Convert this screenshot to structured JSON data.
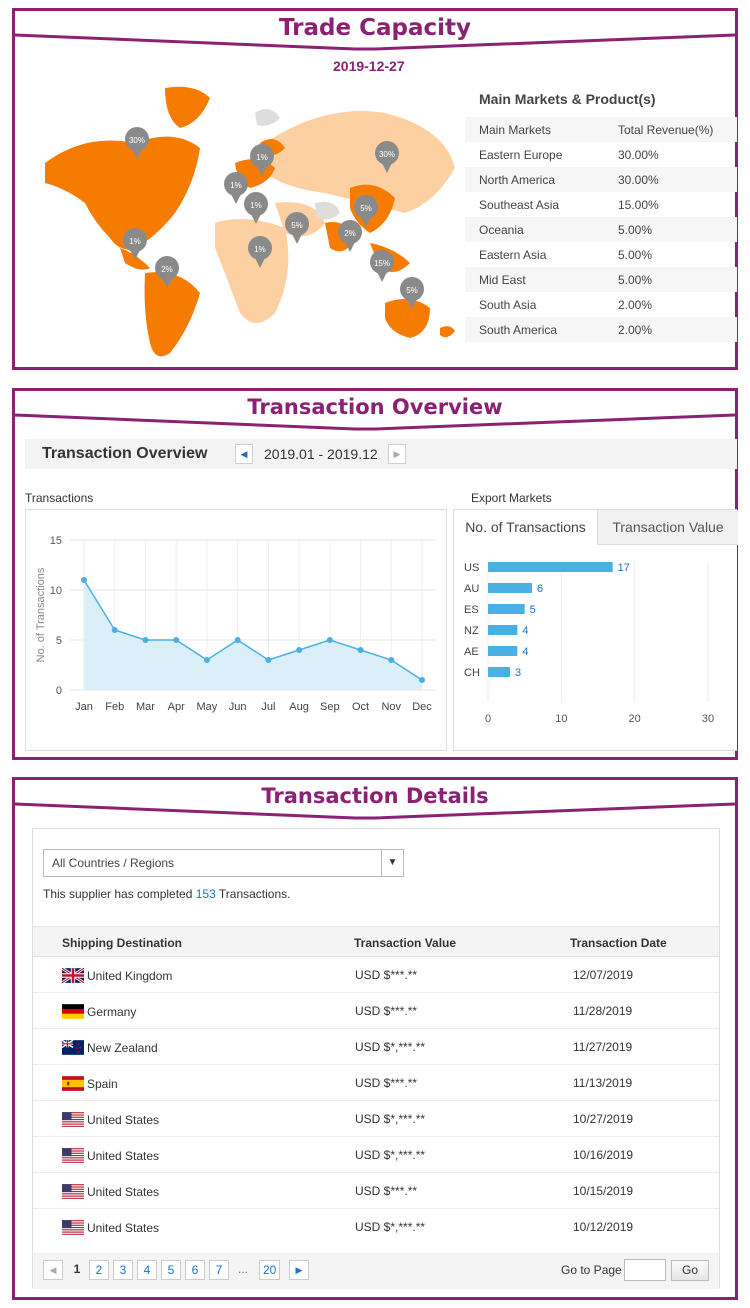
{
  "trade_capacity": {
    "banner_title": "Trade Capacity",
    "date": "2019-12-27",
    "map_pins": [
      "30%",
      "1%",
      "1%",
      "1%",
      "30%",
      "5%",
      "5%",
      "2%",
      "1%",
      "1%",
      "2%",
      "15%",
      "5%"
    ],
    "main_markets_title": "Main Markets & Product(s)",
    "table_headers": [
      "Main Markets",
      "Total Revenue(%)"
    ],
    "markets": [
      {
        "name": "Eastern Europe",
        "revenue": "30.00%"
      },
      {
        "name": "North America",
        "revenue": "30.00%"
      },
      {
        "name": "Southeast Asia",
        "revenue": "15.00%"
      },
      {
        "name": "Oceania",
        "revenue": "5.00%"
      },
      {
        "name": "Eastern Asia",
        "revenue": "5.00%"
      },
      {
        "name": "Mid East",
        "revenue": "5.00%"
      },
      {
        "name": "South Asia",
        "revenue": "2.00%"
      },
      {
        "name": "South America",
        "revenue": "2.00%"
      }
    ],
    "colors": {
      "dark": "#f57c00",
      "light": "#fdd0a2",
      "pin": "#8a8a8a"
    }
  },
  "transaction_overview": {
    "banner_title": "Transaction Overview",
    "title": "Transaction Overview",
    "date_range": "2019.01 - 2019.12",
    "transactions_label": "Transactions",
    "export_markets_label": "Export Markets",
    "tabs": [
      "No. of Transactions",
      "Transaction Value"
    ]
  },
  "chart_data": [
    {
      "type": "area",
      "ylabel": "No. of Transactions",
      "categories": [
        "Jan",
        "Feb",
        "Mar",
        "Apr",
        "May",
        "Jun",
        "Jul",
        "Aug",
        "Sep",
        "Oct",
        "Nov",
        "Dec"
      ],
      "values": [
        11,
        6,
        5,
        5,
        3,
        5,
        3,
        4,
        5,
        4,
        3,
        1
      ],
      "yticks": [
        "0",
        "5",
        "10",
        "15"
      ],
      "ylim": [
        0,
        15
      ],
      "grid": true,
      "color": "#4ab0e4"
    },
    {
      "type": "bar",
      "orientation": "horizontal",
      "categories": [
        "US",
        "AU",
        "ES",
        "NZ",
        "AE",
        "CH"
      ],
      "values": [
        17,
        6,
        5,
        4,
        4,
        3
      ],
      "value_labels": [
        "17",
        "6",
        "5",
        "4",
        "4",
        "3"
      ],
      "xticks": [
        "0",
        "10",
        "20",
        "30"
      ],
      "xlim": [
        0,
        30
      ],
      "color": "#4ab0e4"
    }
  ],
  "transaction_details": {
    "banner_title": "Transaction Details",
    "select_value": "All Countries / Regions",
    "summary_prefix": "This supplier has completed ",
    "summary_count": "153",
    "summary_suffix": " Transactions.",
    "headers": [
      "Shipping Destination",
      "Transaction Value",
      "Transaction Date"
    ],
    "rows": [
      {
        "flag": "uk-flag-icon",
        "country": "United Kingdom",
        "value": "USD $***.**",
        "date": "12/07/2019"
      },
      {
        "flag": "germany-flag-icon",
        "country": "Germany",
        "value": "USD $***.**",
        "date": "11/28/2019"
      },
      {
        "flag": "new-zealand-flag-icon",
        "country": "New Zealand",
        "value": "USD $*,***.**",
        "date": "11/27/2019"
      },
      {
        "flag": "spain-flag-icon",
        "country": "Spain",
        "value": "USD $***.**",
        "date": "11/13/2019"
      },
      {
        "flag": "usa-flag-icon",
        "country": "United States",
        "value": "USD $*,***.**",
        "date": "10/27/2019"
      },
      {
        "flag": "usa-flag-icon",
        "country": "United States",
        "value": "USD $*,***.**",
        "date": "10/16/2019"
      },
      {
        "flag": "usa-flag-icon",
        "country": "United States",
        "value": "USD $***.**",
        "date": "10/15/2019"
      },
      {
        "flag": "usa-flag-icon",
        "country": "United States",
        "value": "USD $*,***.**",
        "date": "10/12/2019"
      }
    ],
    "pagination": {
      "pages": [
        "1",
        "2",
        "3",
        "4",
        "5",
        "6",
        "7"
      ],
      "current": "1",
      "ellipsis": "...",
      "last": "20",
      "goto_label": "Go to Page",
      "go_label": "Go"
    }
  }
}
